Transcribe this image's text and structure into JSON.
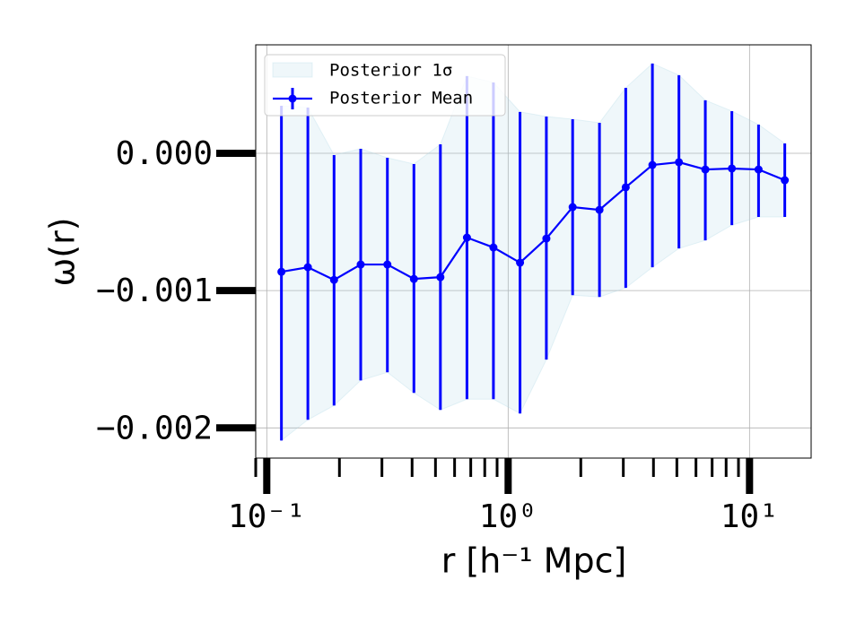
{
  "chart_data": {
    "type": "errorbar",
    "x_label": "r [h⁻¹ Mpc]",
    "y_label": "ω(r)",
    "x_scale": "log",
    "grid": true,
    "legend": "upper left",
    "xlim": [
      0.09,
      18
    ],
    "ylim": [
      -0.00222,
      0.00079
    ],
    "xticks": [
      {
        "value": 0.1,
        "label": "10⁻¹"
      },
      {
        "value": 1,
        "label": "10⁰"
      },
      {
        "value": 10,
        "label": "10¹"
      }
    ],
    "xminorticks": [
      0.09,
      0.2,
      0.3,
      0.4,
      0.5,
      0.6,
      0.7,
      0.8,
      0.9,
      2,
      3,
      4,
      5,
      6,
      7,
      8,
      9
    ],
    "yticks": [
      {
        "value": 0,
        "label": "0.000"
      },
      {
        "value": -0.001,
        "label": "−0.001"
      },
      {
        "value": -0.002,
        "label": "−0.002"
      }
    ],
    "x": [
      0.115,
      0.148,
      0.19,
      0.245,
      0.316,
      0.407,
      0.524,
      0.675,
      0.869,
      1.12,
      1.44,
      1.85,
      2.39,
      3.07,
      3.96,
      5.1,
      6.56,
      8.45,
      10.9,
      14.0
    ],
    "series": [
      {
        "name": "Posterior 1σ",
        "color": "#add8e6",
        "lower": [
          -0.002092,
          -0.001941,
          -0.001837,
          -0.001654,
          -0.001595,
          -0.001745,
          -0.001869,
          -0.001791,
          -0.001791,
          -0.001895,
          -0.001503,
          -0.001033,
          -0.001046,
          -0.00098,
          -0.00083,
          -0.000693,
          -0.000634,
          -0.000523,
          -0.000464,
          -0.000464
        ],
        "upper": [
          0.000346,
          0.000333,
          -1.3e-05,
          3.3e-05,
          -3.3e-05,
          -7.8e-05,
          6.5e-05,
          0.000562,
          0.000516,
          0.000301,
          0.000268,
          0.000248,
          0.000222,
          0.000477,
          0.000654,
          0.000569,
          0.000386,
          0.000307,
          0.000209,
          7.2e-05
        ]
      },
      {
        "name": "Posterior Mean",
        "color": "#0000ff",
        "values": [
          -0.000863,
          -0.00083,
          -0.000922,
          -0.00081,
          -0.00081,
          -0.000915,
          -0.000902,
          -0.000614,
          -0.000686,
          -0.000797,
          -0.000621,
          -0.000392,
          -0.000412,
          -0.000248,
          -8.5e-05,
          -6.5e-05,
          -0.000118,
          -0.000111,
          -0.000118,
          -0.000196
        ]
      }
    ]
  }
}
